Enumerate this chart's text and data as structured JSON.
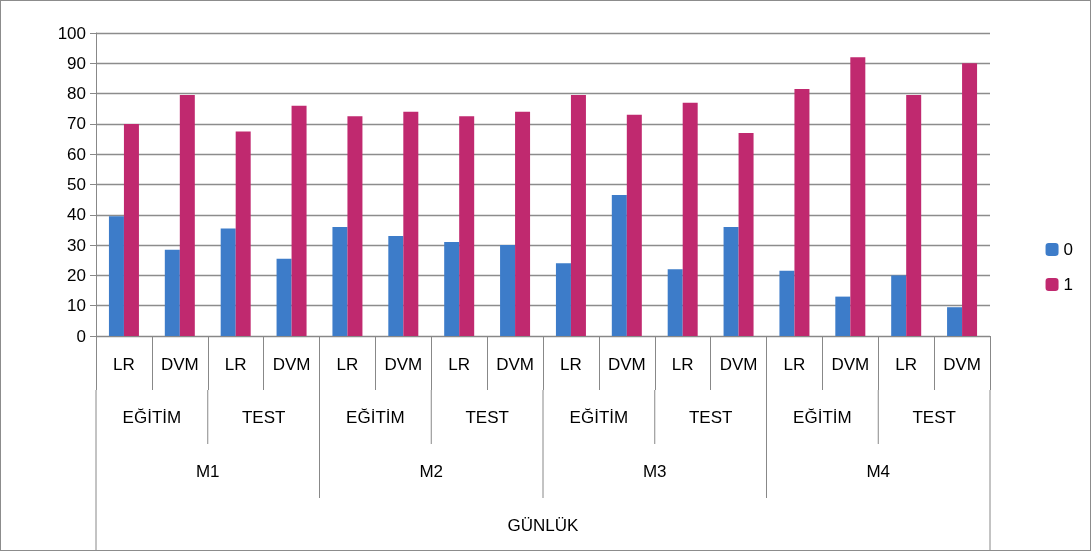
{
  "chart_data": {
    "type": "bar",
    "categories": [
      "LR",
      "DVM",
      "LR",
      "DVM",
      "LR",
      "DVM",
      "LR",
      "DVM",
      "LR",
      "DVM",
      "LR",
      "DVM",
      "LR",
      "DVM",
      "LR",
      "DVM"
    ],
    "series": [
      {
        "name": "0",
        "color": "#3d7cc9",
        "values": [
          39.5,
          28.5,
          35.5,
          25.5,
          36,
          33,
          31,
          30,
          24,
          46.5,
          22,
          36,
          21.5,
          13,
          20,
          9.5
        ]
      },
      {
        "name": "1",
        "color": "#c0296f",
        "values": [
          70,
          79.5,
          67.5,
          76,
          72.5,
          74,
          72.5,
          74,
          79.5,
          73,
          77,
          67,
          81.5,
          92,
          79.5,
          90
        ]
      }
    ],
    "annotations": [
      "EĞİTİM",
      "TEST",
      "EĞİTİM",
      "TEST",
      "EĞİTİM",
      "TEST",
      "EĞİTİM",
      "TEST",
      "M1",
      "M2",
      "M3",
      "M4",
      "GÜNLÜK"
    ],
    "ylim": [
      0,
      100
    ],
    "yticks": [
      0,
      10,
      20,
      30,
      40,
      50,
      60,
      70,
      80,
      90,
      100
    ],
    "grid": "y",
    "legend": "right"
  }
}
